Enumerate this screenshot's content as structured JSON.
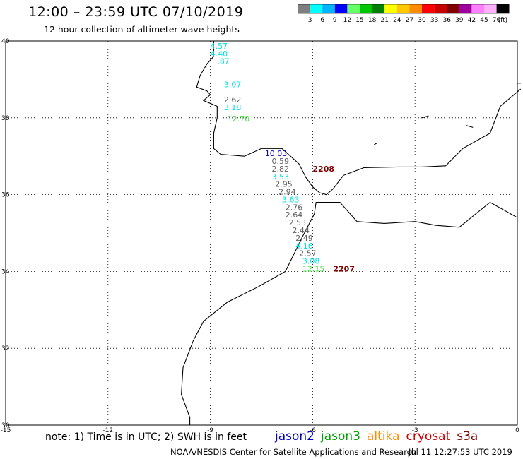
{
  "header": {
    "title": "12:00 – 23:59 UTC 07/10/2019",
    "subtitle": "12 hour collection of altimeter wave heights"
  },
  "legend": {
    "colors": [
      "#7f7f7f",
      "#00ffff",
      "#00b4ff",
      "#0000ff",
      "#66ff66",
      "#00c800",
      "#008000",
      "#ffff00",
      "#ffc800",
      "#ff8c00",
      "#ff0000",
      "#c80000",
      "#800000",
      "#a000a0",
      "#ff80ff",
      "#ffb0ff",
      "#000000"
    ],
    "labels": [
      "3",
      "6",
      "9",
      "12",
      "15",
      "18",
      "21",
      "24",
      "27",
      "30",
      "33",
      "36",
      "39",
      "42",
      "45",
      "70",
      "(ft)"
    ]
  },
  "axes": {
    "lon_ticks": [
      "-15",
      "-12",
      "-9",
      "-6",
      "-3",
      "0"
    ],
    "lat_ticks": [
      "40",
      "38",
      "36",
      "34",
      "32",
      "30"
    ]
  },
  "observations": [
    {
      "value": "4.57",
      "lon": -9.0,
      "lat": 39.8,
      "sat": "s3a"
    },
    {
      "value": "4.40",
      "lon": -9.0,
      "lat": 39.6,
      "sat": "s3a"
    },
    {
      "value": ".87",
      "lon": -8.8,
      "lat": 39.4,
      "sat": "s3a"
    },
    {
      "value": "3.07",
      "lon": -8.6,
      "lat": 38.8,
      "sat": "s3a"
    },
    {
      "value": "2.62",
      "lon": -8.6,
      "lat": 38.4,
      "sat": "s3a"
    },
    {
      "value": "3.18",
      "lon": -8.6,
      "lat": 38.2,
      "sat": "s3a"
    },
    {
      "value": "12.70",
      "lon": -8.5,
      "lat": 37.9,
      "sat": "jason3"
    },
    {
      "value": "10.03",
      "lon": -7.4,
      "lat": 37.0,
      "sat": "jason2"
    },
    {
      "value": "0.59",
      "lon": -7.2,
      "lat": 36.8,
      "sat": "s3a"
    },
    {
      "value": "2.82",
      "lon": -7.2,
      "lat": 36.6,
      "sat": "s3a"
    },
    {
      "value": "2208",
      "lon": -6.0,
      "lat": 36.6,
      "sat": "cryosat"
    },
    {
      "value": "3.53",
      "lon": -7.2,
      "lat": 36.4,
      "sat": "s3a"
    },
    {
      "value": "2.95",
      "lon": -7.1,
      "lat": 36.2,
      "sat": "s3a"
    },
    {
      "value": "2.94",
      "lon": -7.0,
      "lat": 36.0,
      "sat": "s3a"
    },
    {
      "value": "3.63",
      "lon": -6.9,
      "lat": 35.8,
      "sat": "s3a"
    },
    {
      "value": "2.76",
      "lon": -6.8,
      "lat": 35.6,
      "sat": "s3a"
    },
    {
      "value": "2.64",
      "lon": -6.8,
      "lat": 35.4,
      "sat": "s3a"
    },
    {
      "value": "2.53",
      "lon": -6.7,
      "lat": 35.2,
      "sat": "s3a"
    },
    {
      "value": "2.44",
      "lon": -6.6,
      "lat": 35.0,
      "sat": "s3a"
    },
    {
      "value": "2.49",
      "lon": -6.5,
      "lat": 34.8,
      "sat": "s3a"
    },
    {
      "value": "4.16",
      "lon": -6.5,
      "lat": 34.6,
      "sat": "s3a"
    },
    {
      "value": "2.57",
      "lon": -6.4,
      "lat": 34.4,
      "sat": "s3a"
    },
    {
      "value": "3.08",
      "lon": -6.3,
      "lat": 34.2,
      "sat": "s3a"
    },
    {
      "value": "12.15",
      "lon": -6.3,
      "lat": 34.0,
      "sat": "jason3"
    },
    {
      "value": "2207",
      "lon": -5.4,
      "lat": 34.0,
      "sat": "cryosat"
    }
  ],
  "obs_colors": {
    "s3a": "#00e0e0",
    "jason3": "#40e040",
    "jason2": "#0000c0",
    "cryosat": "#800000",
    "grey": "#606060"
  },
  "grey_values": [
    "2.62",
    "0.59",
    "2.82",
    "2.95",
    "2.94",
    "2.76",
    "2.64",
    "2.53",
    "2.44",
    "2.49",
    "2.57"
  ],
  "footer": {
    "note": "note: 1) Time is in UTC; 2) SWH is in feet",
    "sats": [
      {
        "name": "jason2",
        "color": "#0000c0"
      },
      {
        "name": "jason3",
        "color": "#00a000"
      },
      {
        "name": "altika",
        "color": "#ff8c00"
      },
      {
        "name": "cryosat",
        "color": "#cc0000"
      },
      {
        "name": "s3a",
        "color": "#800000"
      }
    ],
    "credit": "NOAA/NESDIS Center for Satellite Applications and Research",
    "timestamp": "Jul 11 12:27:53 UTC 2019"
  }
}
